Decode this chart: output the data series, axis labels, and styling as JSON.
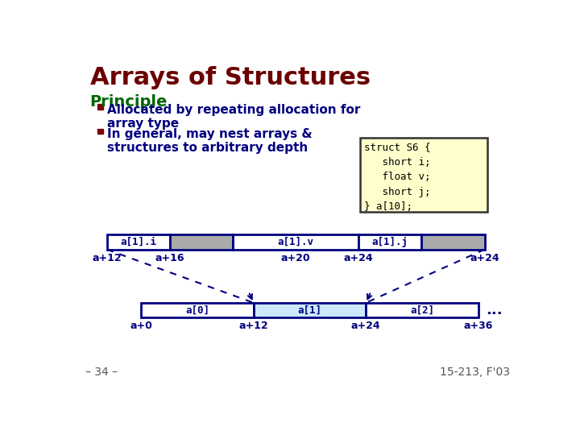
{
  "title": "Arrays of Structures",
  "title_color": "#6B0000",
  "bg_color": "#FFFFFF",
  "principle_color": "#006600",
  "bullet_color": "#800000",
  "text_color": "#000080",
  "code_bg": "#FFFFCC",
  "code_border": "#333333",
  "code_lines": [
    "struct S6 {",
    "   short i;",
    "   float v;",
    "   short j;",
    "} a[10];"
  ],
  "footer_left": "– 34 –",
  "footer_right": "15-213, F'03",
  "diag_color": "#000080",
  "gray_fill": "#AAAAAA",
  "blue_fill": "#CCE8FF"
}
